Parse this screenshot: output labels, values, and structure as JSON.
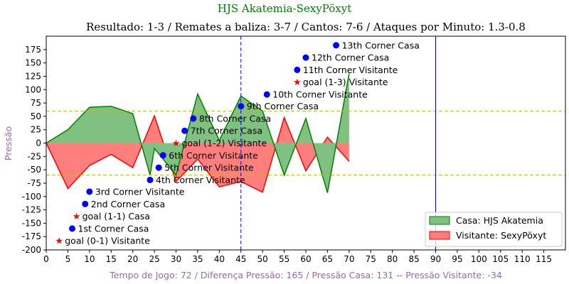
{
  "chart_data": {
    "type": "area",
    "title": "HJS Akatemia-SexyPöxyt",
    "subtitle": "Resultado: 1-3 / Remates a baliza: 3-7 / Cantos: 7-6 / Ataques por Minuto: 1.3-0.8",
    "xlabel": "Tempo de Jogo: 72 / Diferença Pressão: 165 / Pressão Casa: 131 -- Pressão Visitante: -34",
    "ylabel": "Pressão",
    "xlim": [
      0,
      120
    ],
    "ylim": [
      -200,
      200
    ],
    "x_ticks": [
      0,
      5,
      10,
      15,
      20,
      25,
      30,
      35,
      40,
      45,
      50,
      55,
      60,
      65,
      70,
      75,
      80,
      85,
      90,
      95,
      100,
      105,
      110,
      115
    ],
    "y_ticks": [
      -200,
      -175,
      -150,
      -125,
      -100,
      -75,
      -50,
      -25,
      0,
      25,
      50,
      75,
      100,
      125,
      150,
      175
    ],
    "threshold_lines": [
      60,
      -60
    ],
    "vertical_lines": [
      45,
      90
    ],
    "legend_position": "lower-right",
    "colors": {
      "title": "#008000",
      "axis_label": "#9467bd",
      "home_line": "#008000",
      "home_fill": "#80c080",
      "away_line": "#ff0000",
      "away_fill": "#ff7f7f",
      "threshold": "#bfbf00",
      "vline": "#0000ff",
      "marker": "#0000ff",
      "goal_marker": "#ff0000"
    },
    "series": [
      {
        "name": "Casa: HJS Akatemia",
        "x": [
          0,
          5,
          10,
          15,
          20,
          24,
          25,
          30,
          35,
          40,
          45,
          50,
          55,
          60,
          65,
          70
        ],
        "values": [
          0,
          25,
          67,
          69,
          55,
          -60,
          -10,
          -60,
          92,
          5,
          88,
          60,
          -60,
          46,
          -93,
          130
        ]
      },
      {
        "name": "Visitante: SexyPöxyt",
        "x": [
          0,
          5,
          10,
          15,
          20,
          25,
          30,
          35,
          40,
          45,
          50,
          55,
          60,
          65,
          70
        ],
        "values": [
          0,
          -85,
          -42,
          -21,
          -46,
          51,
          -72,
          -30,
          -82,
          -72,
          -92,
          48,
          -52,
          11,
          -34
        ]
      }
    ],
    "annotations": [
      {
        "x": 3,
        "y": -183,
        "label": "goal (0-1) Visitante",
        "marker": "star"
      },
      {
        "x": 6,
        "y": -160,
        "label": "1st Corner Casa",
        "marker": "dot"
      },
      {
        "x": 7,
        "y": -137,
        "label": "goal (1-1) Casa",
        "marker": "star"
      },
      {
        "x": 9,
        "y": -114,
        "label": "2nd Corner Casa",
        "marker": "dot"
      },
      {
        "x": 10,
        "y": -91,
        "label": "3rd Corner Visitante",
        "marker": "dot"
      },
      {
        "x": 24,
        "y": -69,
        "label": "4th Corner Visitante",
        "marker": "dot"
      },
      {
        "x": 26,
        "y": -46,
        "label": "5th Corner Visitante",
        "marker": "dot"
      },
      {
        "x": 27,
        "y": -23,
        "label": "6th Corner Visitante",
        "marker": "dot"
      },
      {
        "x": 30,
        "y": 0,
        "label": "goal (1-2) Visitante",
        "marker": "star"
      },
      {
        "x": 32,
        "y": 23,
        "label": "7th Corner Casa",
        "marker": "dot"
      },
      {
        "x": 34,
        "y": 46,
        "label": "8th Corner Casa",
        "marker": "dot"
      },
      {
        "x": 45,
        "y": 69,
        "label": "9th Corner Casa",
        "marker": "dot"
      },
      {
        "x": 51,
        "y": 91,
        "label": "10th Corner Visitante",
        "marker": "dot"
      },
      {
        "x": 58,
        "y": 114,
        "label": "goal (1-3) Visitante",
        "marker": "star"
      },
      {
        "x": 58,
        "y": 137,
        "label": "11th Corner Visitante",
        "marker": "dot"
      },
      {
        "x": 60,
        "y": 160,
        "label": "12th Corner Casa",
        "marker": "dot"
      },
      {
        "x": 67,
        "y": 183,
        "label": "13th Corner Casa",
        "marker": "dot"
      }
    ]
  }
}
